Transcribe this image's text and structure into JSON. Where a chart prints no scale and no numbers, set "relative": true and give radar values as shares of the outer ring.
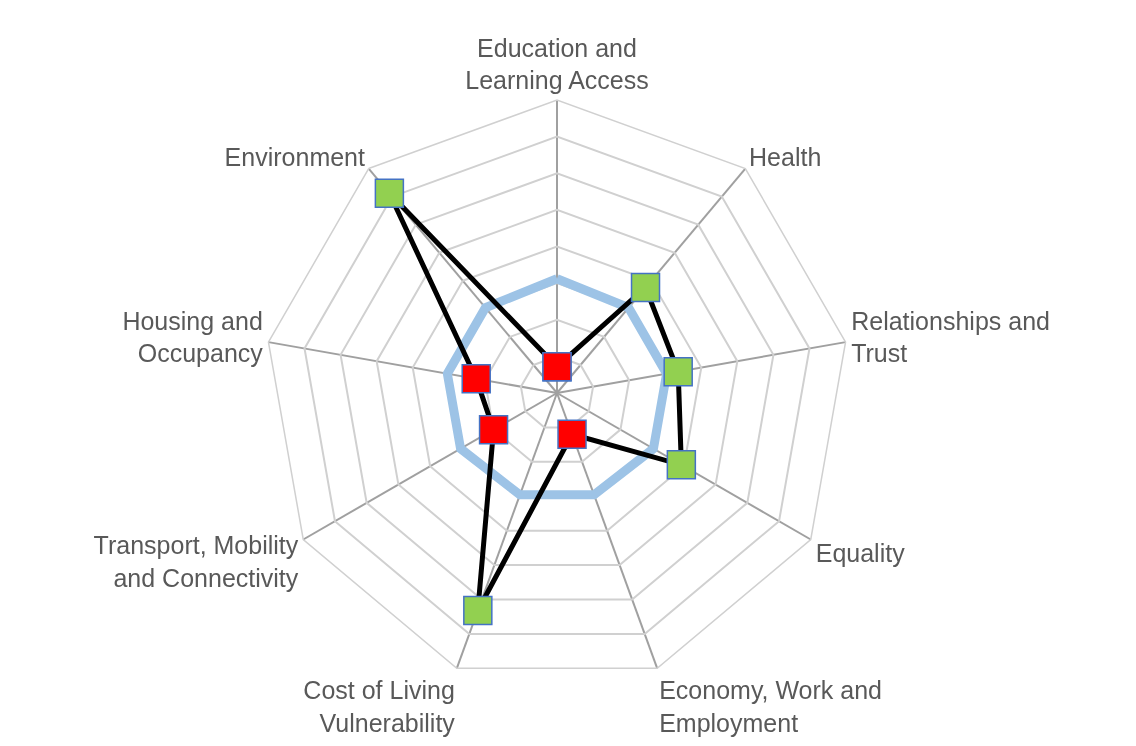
{
  "chart_data": {
    "type": "radar",
    "relative": true,
    "grid": true,
    "legend": false,
    "categories": [
      "Education and Learning Access",
      "Health",
      "Relationships and Trust",
      "Equality",
      "Economy, Work and Employment",
      "Cost of Living Vulnerability",
      "Transport, Mobility and Connectivity",
      "Housing and Occupancy",
      "Environment"
    ],
    "series": [
      {
        "color": "#9dc3e6",
        "marker": "none",
        "values": [
          0.39,
          0.38,
          0.38,
          0.38,
          0.37,
          0.37,
          0.38,
          0.38,
          0.38
        ]
      },
      {
        "color": "#000000",
        "marker": "square",
        "colors": [
          "#ff0000",
          "#92d050",
          "#92d050",
          "#92d050",
          "#ff0000",
          "#92d050",
          "#ff0000",
          "#ff0000",
          "#92d050"
        ],
        "values": [
          0.09,
          0.47,
          0.42,
          0.49,
          0.15,
          0.79,
          0.25,
          0.28,
          0.89
        ]
      }
    ]
  }
}
